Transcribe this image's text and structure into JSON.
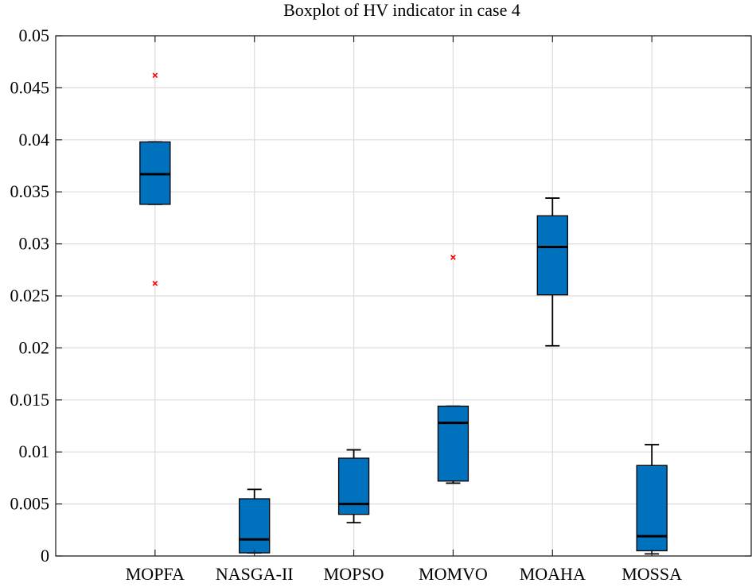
{
  "chart_data": {
    "type": "boxplot",
    "title": "Boxplot of  HV indicator in case 4",
    "xlabel": "",
    "ylabel": "",
    "ylim": [
      0,
      0.05
    ],
    "yticks": [
      0,
      0.005,
      0.01,
      0.015,
      0.02,
      0.025,
      0.03,
      0.035,
      0.04,
      0.045,
      0.05
    ],
    "ytick_labels": [
      "0",
      "0.005",
      "0.01",
      "0.015",
      "0.02",
      "0.025",
      "0.03",
      "0.035",
      "0.04",
      "0.045",
      "0.05"
    ],
    "grid": true,
    "categories": [
      "MOPFA",
      "NASGA-II",
      "MOPSO",
      "MOMVO",
      "MOAHA",
      "MOSSA"
    ],
    "boxes": [
      {
        "name": "MOPFA",
        "whisker_low": 0.0338,
        "q1": 0.0338,
        "median": 0.0367,
        "q3": 0.0398,
        "whisker_high": 0.0398,
        "outliers": [
          0.0462,
          0.0262
        ]
      },
      {
        "name": "NASGA-II",
        "whisker_low": 0.0003,
        "q1": 0.0003,
        "median": 0.0016,
        "q3": 0.0055,
        "whisker_high": 0.0064,
        "outliers": []
      },
      {
        "name": "MOPSO",
        "whisker_low": 0.0032,
        "q1": 0.004,
        "median": 0.005,
        "q3": 0.0094,
        "whisker_high": 0.0102,
        "outliers": []
      },
      {
        "name": "MOMVO",
        "whisker_low": 0.007,
        "q1": 0.0072,
        "median": 0.0128,
        "q3": 0.0144,
        "whisker_high": 0.0144,
        "outliers": [
          0.0287
        ]
      },
      {
        "name": "MOAHA",
        "whisker_low": 0.0202,
        "q1": 0.0251,
        "median": 0.0297,
        "q3": 0.0327,
        "whisker_high": 0.0344,
        "outliers": []
      },
      {
        "name": "MOSSA",
        "whisker_low": 0.0002,
        "q1": 0.0005,
        "median": 0.0019,
        "q3": 0.0087,
        "whisker_high": 0.0107,
        "outliers": []
      }
    ],
    "colors": {
      "box_fill": "#0072BD",
      "box_edge": "#000000",
      "median": "#000000",
      "whisker": "#000000",
      "outlier": "#FF0000",
      "grid": "#DCDCDC",
      "axis": "#262626"
    }
  }
}
